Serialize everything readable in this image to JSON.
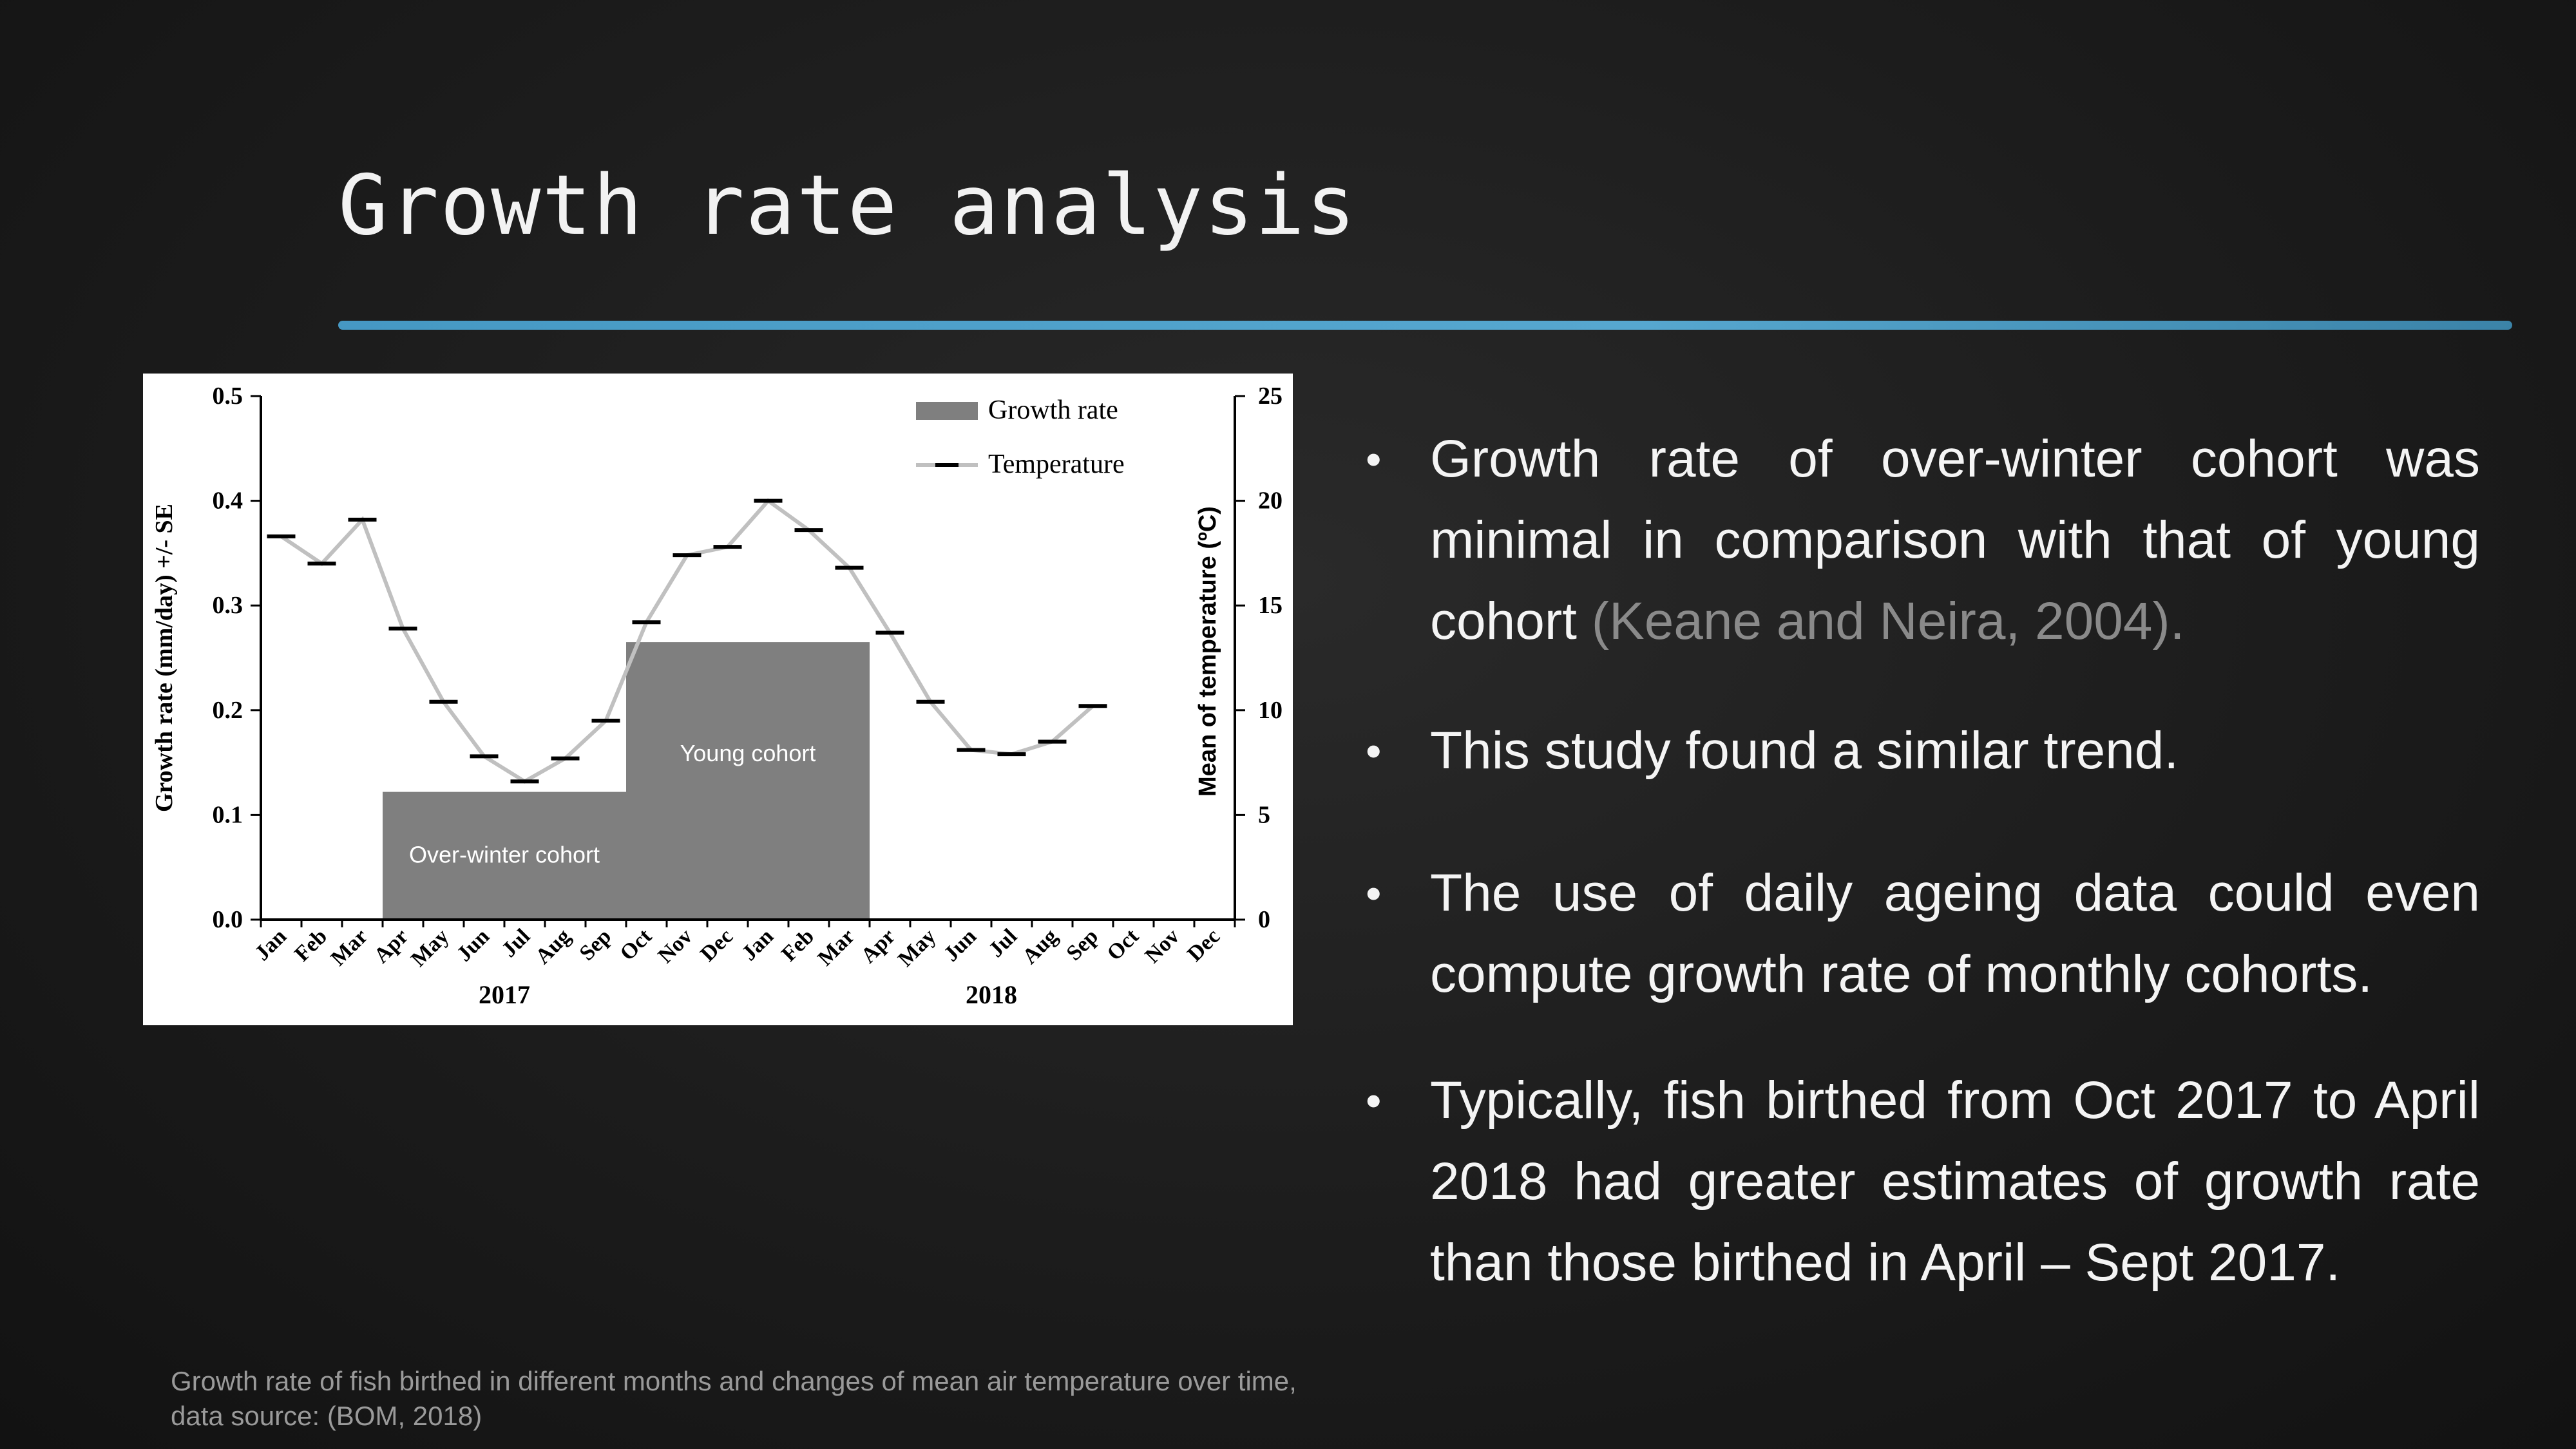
{
  "slide": {
    "title": "Growth rate analysis",
    "caption": "Growth rate of fish birthed in different months and changes of mean air temperature over time, data source: (BOM, 2018)",
    "bullets": [
      {
        "text": "Growth rate of over-winter cohort  was minimal in comparison with that of young cohort ",
        "cite": "(Keane and Neira, 2004)."
      },
      {
        "text": "This study found a similar trend.",
        "cite": ""
      },
      {
        "text": "The use of daily ageing data could even compute growth rate of monthly cohorts.",
        "cite": ""
      },
      {
        "text": "Typically, fish birthed from Oct 2017 to April 2018 had greater estimates of growth rate than those birthed in April – Sept 2017.",
        "cite": ""
      }
    ],
    "colors": {
      "background": "#1c1c1c",
      "divider": "#4aa6d6",
      "bar": "#7f7f7f",
      "line": "#c0c0c0",
      "marker": "#000000"
    }
  },
  "chart_data": {
    "type": "bar+line",
    "x": [
      "Jan",
      "Feb",
      "Mar",
      "Apr",
      "May",
      "Jun",
      "Jul",
      "Aug",
      "Sep",
      "Oct",
      "Nov",
      "Dec",
      "Jan",
      "Feb",
      "Mar",
      "Apr",
      "May",
      "Jun",
      "Jul",
      "Aug",
      "Sep",
      "Oct",
      "Nov",
      "Dec"
    ],
    "year_labels": [
      {
        "label": "2017",
        "center_index": 5.5
      },
      {
        "label": "2018",
        "center_index": 17.5
      }
    ],
    "bars": [
      {
        "label": "Over-winter cohort",
        "start_index": 3,
        "end_index": 9,
        "value": 0.122
      },
      {
        "label": "Young cohort",
        "start_index": 9,
        "end_index": 15,
        "value": 0.265
      }
    ],
    "series": [
      {
        "name": "Temperature",
        "axis": "right",
        "values": [
          18.3,
          17.0,
          19.1,
          13.9,
          10.4,
          7.8,
          6.6,
          7.7,
          9.5,
          14.2,
          17.4,
          17.8,
          20.0,
          18.6,
          16.8,
          13.7,
          10.4,
          8.1,
          7.9,
          8.5,
          10.2,
          null,
          null,
          null
        ]
      }
    ],
    "legend": {
      "position": "top-right",
      "items": [
        {
          "name": "Growth rate",
          "kind": "bar"
        },
        {
          "name": "Temperature",
          "kind": "line"
        }
      ]
    },
    "ylabel_left": "Growth rate (mm/day) +/- SE",
    "ylabel_right": "Mean of temperature (ºC)",
    "ylim_left": [
      0,
      0.5
    ],
    "yticks_left": [
      "0.0",
      "0.1",
      "0.2",
      "0.3",
      "0.4",
      "0.5"
    ],
    "ylim_right": [
      0,
      25
    ],
    "yticks_right": [
      "0",
      "5",
      "10",
      "15",
      "20",
      "25"
    ],
    "grid": false
  }
}
